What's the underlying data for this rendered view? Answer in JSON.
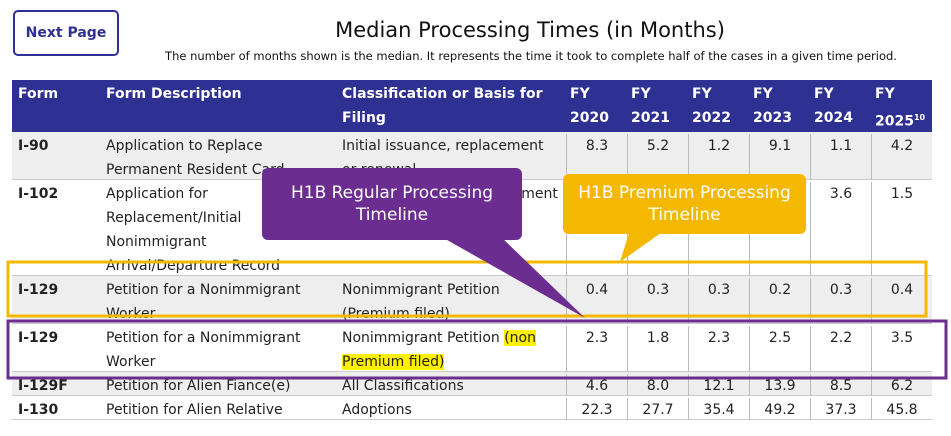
{
  "button": "Next Page",
  "header": {
    "title": "Median Processing Times (in Months)",
    "subtitle": "The number of months shown is the median. It represents the time it took to complete half of the cases in a given time period."
  },
  "table": {
    "columns": [
      "Form",
      "Form Description",
      "Classification or Basis for Filing",
      {
        "top": "FY",
        "bottom": "2020"
      },
      {
        "top": "FY",
        "bottom": "2021"
      },
      {
        "top": "FY",
        "bottom": "2022"
      },
      {
        "top": "FY",
        "bottom": "2023"
      },
      {
        "top": "FY",
        "bottom": "2024"
      },
      {
        "top": "FY",
        "bottom": "2025",
        "note": "10"
      }
    ],
    "rows": [
      {
        "form": "I-90",
        "description": "Application to Replace Permanent Resident Card",
        "classification": "Initial issuance, replacement or renewal",
        "values": [
          "8.3",
          "5.2",
          "1.2",
          "9.1",
          "1.1",
          "4.2"
        ]
      },
      {
        "form": "I-102",
        "description": "Application for Replacement/Initial Nonimmigrant Arrival/Departure Record",
        "classification": "Initial issuance or replacement",
        "values": [
          null,
          null,
          null,
          null,
          "3.6",
          "1.5"
        ]
      },
      {
        "form": "I-129",
        "description": "Petition for a Nonimmigrant Worker",
        "classification": "Nonimmigrant Petition (Premium filed)",
        "values": [
          "0.4",
          "0.3",
          "0.3",
          "0.2",
          "0.3",
          "0.4"
        ]
      },
      {
        "form": "I-129",
        "description": "Petition for a Nonimmigrant Worker",
        "classification": "Nonimmigrant Petition",
        "highlight": "(non Premium filed)",
        "values": [
          "2.3",
          "1.8",
          "2.3",
          "2.5",
          "2.2",
          "3.5"
        ]
      },
      {
        "form": "I-129F",
        "description": "Petition for Alien Fiance(e)",
        "classification": "All Classifications",
        "values": [
          "4.6",
          "8.0",
          "12.1",
          "13.9",
          "8.5",
          "6.2"
        ]
      },
      {
        "form": "I-130",
        "description": "Petition for Alien Relative",
        "classification": "Adoptions",
        "values": [
          "22.3",
          "27.7",
          "35.4",
          "49.2",
          "37.3",
          "45.8"
        ]
      }
    ]
  },
  "callouts": [
    {
      "text": "H1B Regular Processing Timeline"
    },
    {
      "text": "H1B Premium Processing Timeline"
    }
  ]
}
